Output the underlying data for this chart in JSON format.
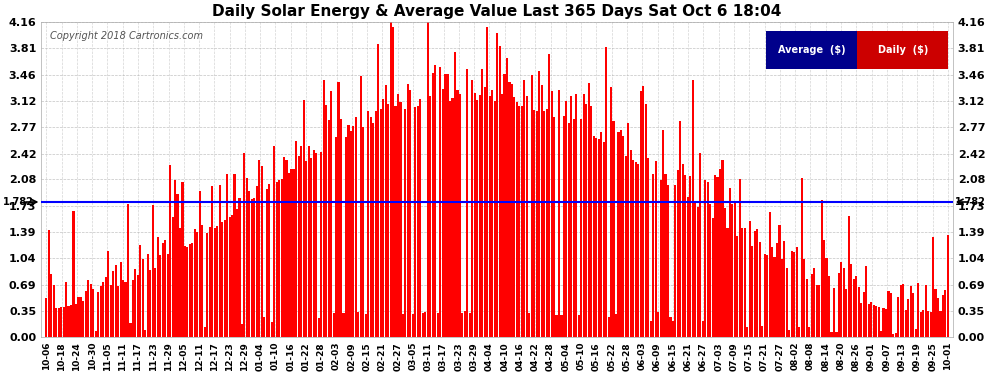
{
  "title": "Daily Solar Energy & Average Value Last 365 Days Sat Oct 6 18:04",
  "copyright": "Copyright 2018 Cartronics.com",
  "average_value": 1.782,
  "average_label": "Average  ($)",
  "daily_label": "Daily  ($)",
  "bar_color": "#FF0000",
  "average_color": "#0000FF",
  "ylim": [
    0.0,
    4.16
  ],
  "yticks": [
    0.0,
    0.35,
    0.69,
    1.04,
    1.39,
    1.73,
    2.08,
    2.42,
    2.77,
    3.12,
    3.46,
    3.81,
    4.16
  ],
  "background_color": "#FFFFFF",
  "grid_color": "#AAAAAA",
  "x_tick_labels": [
    "10-06",
    "10-18",
    "10-24",
    "10-30",
    "11-05",
    "11-11",
    "11-17",
    "11-23",
    "11-29",
    "12-05",
    "12-11",
    "12-17",
    "12-23",
    "12-29",
    "01-04",
    "01-10",
    "01-16",
    "01-22",
    "01-28",
    "02-03",
    "02-09",
    "02-15",
    "02-21",
    "02-27",
    "03-05",
    "03-11",
    "03-17",
    "03-23",
    "03-29",
    "04-04",
    "04-10",
    "04-16",
    "04-22",
    "04-28",
    "05-04",
    "05-10",
    "05-16",
    "05-22",
    "05-28",
    "06-03",
    "06-09",
    "06-15",
    "06-21",
    "06-27",
    "07-03",
    "07-09",
    "07-15",
    "07-21",
    "07-27",
    "08-02",
    "08-08",
    "08-14",
    "08-20",
    "08-26",
    "09-01",
    "09-07",
    "09-13",
    "09-19",
    "09-25",
    "10-01"
  ]
}
